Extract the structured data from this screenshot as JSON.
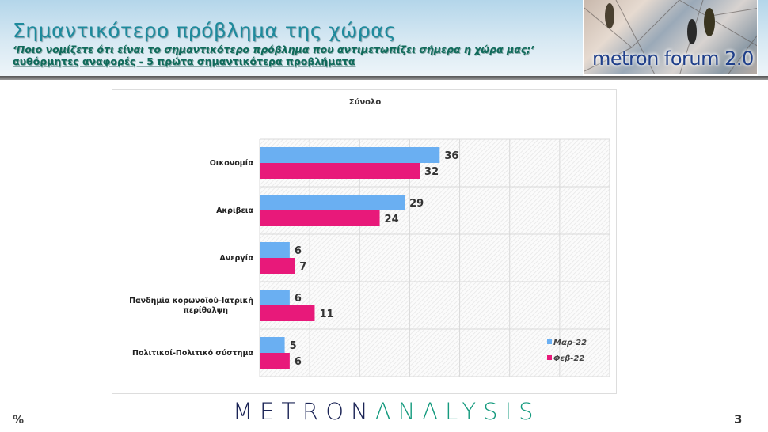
{
  "header": {
    "title": "Σημαντικότερο πρόβλημα της χώρας",
    "question": "‘Ποιο νομίζετε ότι  είναι το σημαντικότερο πρόβλημα που αντιμετωπίζει σήμερα η χώρα μας;’",
    "note": "αυθόρμητες αναφορές - 5 πρώτα σημαντικότερα προβλήματα",
    "logo_text": "metron forum 2.0"
  },
  "footer": {
    "unit": "%",
    "page": "3",
    "logo_part1": "METRON",
    "logo_part2": "ΛNΛLYSIS"
  },
  "colors": {
    "mar": "#6aaff2",
    "feb": "#e8197a",
    "title": "#1d8a9c"
  },
  "chart_data": {
    "type": "bar",
    "orientation": "horizontal",
    "title": "Σύνολο",
    "categories": [
      "Οικονομία",
      "Ακρίβεια",
      "Ανεργία",
      "Πανδημία κορωνοϊού-Ιατρική περίθαλψη",
      "Πολιτικοί-Πολιτικό σύστημα"
    ],
    "series": [
      {
        "name": "Μαρ-22",
        "values": [
          36,
          29,
          6,
          6,
          5
        ]
      },
      {
        "name": "Φεβ-22",
        "values": [
          32,
          24,
          7,
          11,
          6
        ]
      }
    ],
    "xlim": [
      0,
      70
    ],
    "grid": true,
    "legend": "bottom-right"
  }
}
